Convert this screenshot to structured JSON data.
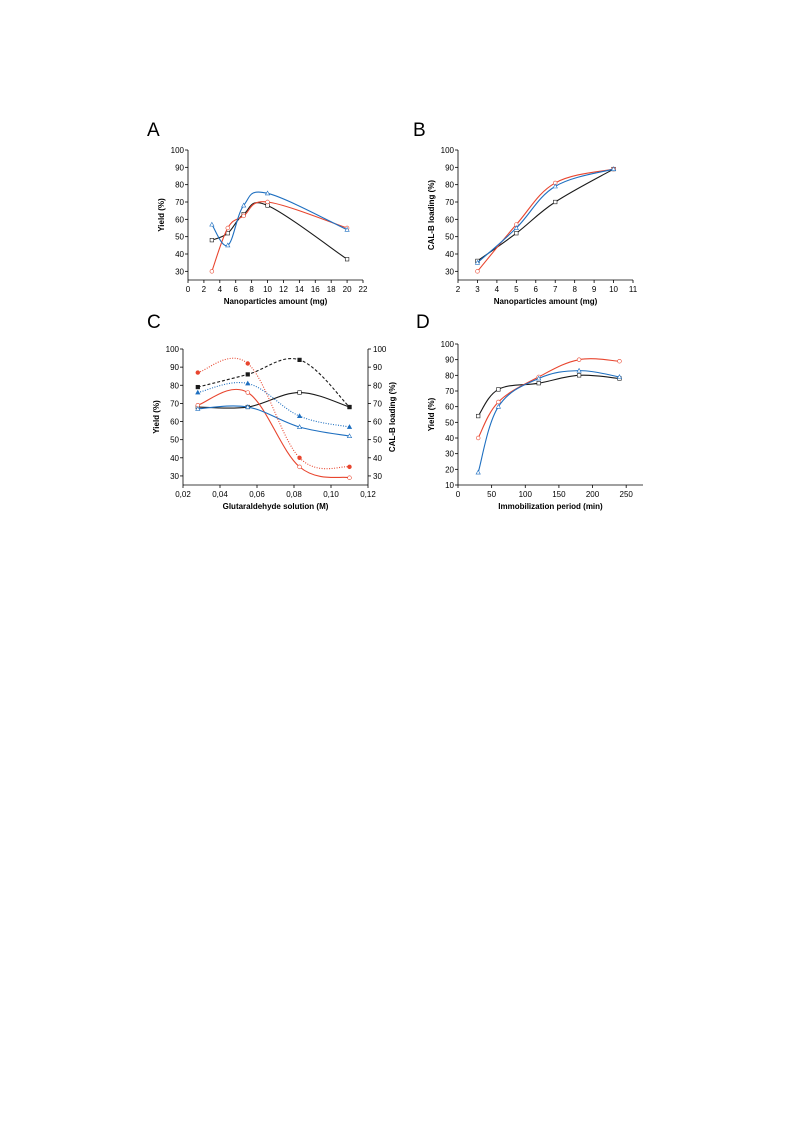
{
  "colors": {
    "black": "#1a1a1a",
    "red": "#e8452e",
    "blue": "#1e6fc0"
  },
  "chart_data": [
    {
      "type": "line",
      "panel": "A",
      "xlabel": "Nanoparticles amount (mg)",
      "ylabel": "Yield (%)",
      "xlim": [
        0,
        22
      ],
      "ylim": [
        25,
        100
      ],
      "xticks": [
        "0",
        "2",
        "4",
        "6",
        "8",
        "10",
        "12",
        "14",
        "16",
        "18",
        "20",
        "22"
      ],
      "yticks": [
        "30",
        "40",
        "50",
        "60",
        "70",
        "80",
        "90",
        "100"
      ],
      "series": [
        {
          "color": "black",
          "marker": "open-square",
          "x": [
            3,
            5,
            7,
            10,
            20
          ],
          "y": [
            48,
            52,
            63,
            68,
            37
          ]
        },
        {
          "color": "red",
          "marker": "open-circle",
          "x": [
            3,
            5,
            7,
            10,
            20
          ],
          "y": [
            30,
            55,
            62,
            70,
            55
          ]
        },
        {
          "color": "blue",
          "marker": "open-triangle",
          "x": [
            3,
            5,
            7,
            10,
            20
          ],
          "y": [
            57,
            45,
            68,
            75,
            54
          ]
        }
      ]
    },
    {
      "type": "line",
      "panel": "B",
      "xlabel": "Nanoparticles amount (mg)",
      "ylabel": "CAL-B loading (%)",
      "xlim": [
        2,
        11
      ],
      "ylim": [
        25,
        100
      ],
      "xticks": [
        "2",
        "3",
        "4",
        "5",
        "6",
        "7",
        "8",
        "9",
        "10",
        "11"
      ],
      "yticks": [
        "30",
        "40",
        "50",
        "60",
        "70",
        "80",
        "90",
        "100"
      ],
      "series": [
        {
          "color": "black",
          "marker": "open-square",
          "x": [
            3,
            5,
            7,
            10
          ],
          "y": [
            36,
            52,
            70,
            89
          ]
        },
        {
          "color": "red",
          "marker": "open-circle",
          "x": [
            3,
            5,
            7,
            10
          ],
          "y": [
            30,
            57,
            81,
            89
          ]
        },
        {
          "color": "blue",
          "marker": "open-triangle",
          "x": [
            3,
            5,
            7,
            10
          ],
          "y": [
            35,
            55,
            79,
            89
          ]
        }
      ]
    },
    {
      "type": "line",
      "panel": "C",
      "xlabel": "Glutaraldehyde solution (M)",
      "ylabel": "Yield (%)",
      "ylabel_right": "CAL-B loading (%)",
      "xlim": [
        0.02,
        0.12
      ],
      "ylim": [
        25,
        100
      ],
      "xticks": [
        "0,02",
        "0,04",
        "0,06",
        "0,08",
        "0,10",
        "0,12"
      ],
      "yticks": [
        "30",
        "40",
        "50",
        "60",
        "70",
        "80",
        "90",
        "100"
      ],
      "yticks_right": [
        "30",
        "40",
        "50",
        "60",
        "70",
        "80",
        "90",
        "100"
      ],
      "series": [
        {
          "color": "black",
          "marker": "open-square",
          "style": "solid",
          "x": [
            0.028,
            0.055,
            0.083,
            0.11
          ],
          "y": [
            68,
            68,
            76,
            68
          ]
        },
        {
          "color": "red",
          "marker": "open-circle",
          "style": "solid",
          "x": [
            0.028,
            0.055,
            0.083,
            0.11
          ],
          "y": [
            69,
            76,
            35,
            29
          ]
        },
        {
          "color": "blue",
          "marker": "open-triangle",
          "style": "solid",
          "x": [
            0.028,
            0.055,
            0.083,
            0.11
          ],
          "y": [
            67,
            68,
            57,
            52
          ]
        },
        {
          "color": "black",
          "marker": "filled-square",
          "style": "dashed",
          "x": [
            0.028,
            0.055,
            0.083,
            0.11
          ],
          "y": [
            79,
            86,
            94,
            68
          ]
        },
        {
          "color": "red",
          "marker": "filled-circle",
          "style": "dotted",
          "x": [
            0.028,
            0.055,
            0.083,
            0.11
          ],
          "y": [
            87,
            92,
            40,
            35
          ]
        },
        {
          "color": "blue",
          "marker": "filled-triangle",
          "style": "dotted",
          "x": [
            0.028,
            0.055,
            0.083,
            0.11
          ],
          "y": [
            76,
            81,
            63,
            57
          ]
        }
      ]
    },
    {
      "type": "line",
      "panel": "D",
      "xlabel": "Immobilization period (min)",
      "ylabel": "Yield (%)",
      "xlim": [
        0,
        275
      ],
      "ylim": [
        10,
        100
      ],
      "xticks": [
        "0",
        "50",
        "100",
        "150",
        "200",
        "250"
      ],
      "yticks": [
        "10",
        "20",
        "30",
        "40",
        "50",
        "60",
        "70",
        "80",
        "90",
        "100"
      ],
      "series": [
        {
          "color": "black",
          "marker": "open-square",
          "x": [
            30,
            60,
            120,
            180,
            240
          ],
          "y": [
            54,
            71,
            75,
            80,
            78
          ]
        },
        {
          "color": "red",
          "marker": "open-circle",
          "x": [
            30,
            60,
            120,
            180,
            240
          ],
          "y": [
            40,
            63,
            79,
            90,
            89
          ]
        },
        {
          "color": "blue",
          "marker": "open-triangle",
          "x": [
            30,
            60,
            120,
            180,
            240
          ],
          "y": [
            18,
            60,
            78,
            83,
            79
          ]
        }
      ]
    }
  ]
}
